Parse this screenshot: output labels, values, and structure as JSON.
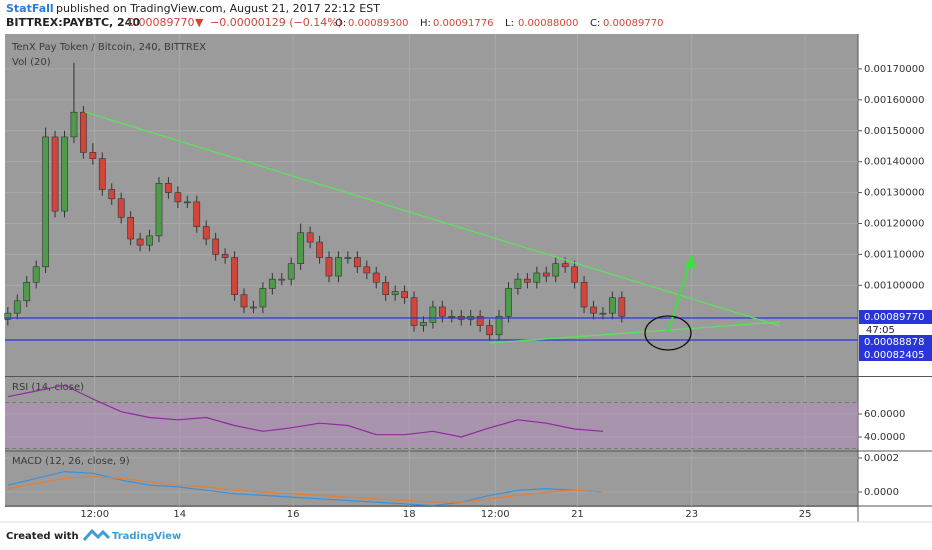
{
  "header": {
    "author": "StatFall",
    "published": "published on TradingView.com, August 21, 2017 22:12 EST",
    "symbol": "BITTREX:PAYBTC, 240",
    "last": "0.00089770",
    "arrow": "▼",
    "change": "−0.00000129 (−0.14%)",
    "ohlc": [
      [
        "O:",
        "0.00089300"
      ],
      [
        "H:",
        "0.00091776"
      ],
      [
        "L:",
        "0.00088000"
      ],
      [
        "C:",
        "0.00089770"
      ]
    ]
  },
  "price_tags": [
    "0.00089770",
    "47:05",
    "0.00088878",
    "0.00082405"
  ],
  "footer": {
    "created": "Created with",
    "brand": "TradingView"
  },
  "chart_data": [
    {
      "type": "candlestick",
      "title": "TenX Pay Token / Bitcoin, 240, BITTREX",
      "subtitle": "Vol (20)",
      "up_color": "#4f9a4b",
      "down_color": "#d2453c",
      "grid": true,
      "x": [
        0,
        1,
        2,
        3,
        4,
        5,
        6,
        7,
        8,
        9,
        10,
        11,
        12,
        13,
        14,
        15,
        16,
        17,
        18,
        19,
        20,
        21,
        22,
        23,
        24,
        25,
        26,
        27,
        28,
        29,
        30,
        31,
        32,
        33,
        34,
        35,
        36,
        37,
        38,
        39,
        40,
        41,
        42,
        43,
        44,
        45,
        46,
        47,
        48,
        49,
        50,
        51,
        52,
        53,
        54,
        55,
        56,
        57,
        58,
        59,
        60,
        61,
        62,
        63,
        64,
        65
      ],
      "open": [
        0.00089,
        0.00091,
        0.00095,
        0.00101,
        0.00106,
        0.00148,
        0.00124,
        0.00148,
        0.00156,
        0.00143,
        0.00141,
        0.00131,
        0.00128,
        0.00122,
        0.00115,
        0.00113,
        0.00116,
        0.00133,
        0.0013,
        0.00127,
        0.00127,
        0.00119,
        0.00115,
        0.0011,
        0.00109,
        0.00097,
        0.00093,
        0.00093,
        0.00099,
        0.00102,
        0.00102,
        0.00107,
        0.00117,
        0.00114,
        0.00109,
        0.00103,
        0.00109,
        0.00109,
        0.00106,
        0.00104,
        0.00101,
        0.00097,
        0.00098,
        0.00096,
        0.00087,
        0.00088,
        0.00093,
        0.0009,
        0.0009,
        0.00089,
        0.0009,
        0.00087,
        0.00084,
        0.0009,
        0.00099,
        0.00102,
        0.00101,
        0.00104,
        0.00103,
        0.00107,
        0.00106,
        0.00101,
        0.00093,
        0.00091,
        0.00091,
        0.00096
      ],
      "close": [
        0.00091,
        0.00095,
        0.00101,
        0.00106,
        0.00148,
        0.00124,
        0.00148,
        0.00156,
        0.00143,
        0.00141,
        0.00131,
        0.00128,
        0.00122,
        0.00115,
        0.00113,
        0.00116,
        0.00133,
        0.0013,
        0.00127,
        0.00127,
        0.00119,
        0.00115,
        0.0011,
        0.00109,
        0.00097,
        0.00093,
        0.00093,
        0.00099,
        0.00102,
        0.00102,
        0.00107,
        0.00117,
        0.00114,
        0.00109,
        0.00103,
        0.00109,
        0.00109,
        0.00106,
        0.00104,
        0.00101,
        0.00097,
        0.00098,
        0.00096,
        0.00087,
        0.00088,
        0.00093,
        0.0009,
        0.0009,
        0.00089,
        0.0009,
        0.00087,
        0.00084,
        0.0009,
        0.00099,
        0.00102,
        0.00101,
        0.00104,
        0.00103,
        0.00107,
        0.00106,
        0.00101,
        0.00093,
        0.00091,
        0.00091,
        0.00096,
        0.0009
      ],
      "high": [
        0.00093,
        0.00097,
        0.00103,
        0.00108,
        0.00151,
        0.0015,
        0.0015,
        0.00172,
        0.00158,
        0.00146,
        0.00143,
        0.00133,
        0.0013,
        0.00124,
        0.00117,
        0.00118,
        0.00135,
        0.00135,
        0.00132,
        0.00129,
        0.00129,
        0.00121,
        0.00117,
        0.00112,
        0.00111,
        0.00099,
        0.00095,
        0.00101,
        0.00104,
        0.00104,
        0.00109,
        0.0012,
        0.00119,
        0.00116,
        0.00111,
        0.00111,
        0.00111,
        0.00111,
        0.00108,
        0.00106,
        0.00103,
        0.001,
        0.001,
        0.00098,
        0.0009,
        0.00095,
        0.00095,
        0.00092,
        0.00092,
        0.00092,
        0.00092,
        0.00089,
        0.00092,
        0.00101,
        0.00104,
        0.00104,
        0.00106,
        0.00106,
        0.00109,
        0.00109,
        0.00108,
        0.00103,
        0.00095,
        0.00093,
        0.00098,
        0.00098
      ],
      "low": [
        0.00087,
        0.00089,
        0.00093,
        0.00099,
        0.00104,
        0.00122,
        0.00122,
        0.00146,
        0.00141,
        0.00139,
        0.00129,
        0.00126,
        0.0012,
        0.00113,
        0.00111,
        0.00111,
        0.00114,
        0.00128,
        0.00125,
        0.00125,
        0.00117,
        0.00113,
        0.00108,
        0.00107,
        0.00095,
        0.00091,
        0.00091,
        0.00091,
        0.00097,
        0.001,
        0.001,
        0.00105,
        0.00112,
        0.00107,
        0.00101,
        0.00101,
        0.00107,
        0.00104,
        0.00102,
        0.00099,
        0.00095,
        0.00095,
        0.00094,
        0.00085,
        0.00085,
        0.00086,
        0.00088,
        0.00088,
        0.00087,
        0.00087,
        0.00085,
        0.00082,
        0.00082,
        0.00088,
        0.00097,
        0.00099,
        0.00099,
        0.00101,
        0.00101,
        0.00104,
        0.00099,
        0.00091,
        0.00089,
        0.00089,
        0.00089,
        0.00088
      ],
      "xlim": [
        -0.3,
        90
      ],
      "xticks": [
        {
          "value": 9.2,
          "label": "12:00"
        },
        {
          "value": 18.2,
          "label": "14"
        },
        {
          "value": 30.2,
          "label": "16"
        },
        {
          "value": 42.5,
          "label": "18"
        },
        {
          "value": 51.6,
          "label": "12:00"
        },
        {
          "value": 60.3,
          "label": "21"
        },
        {
          "value": 72.4,
          "label": "23"
        },
        {
          "value": 84.4,
          "label": "25"
        }
      ],
      "ylim": [
        0.00071,
        0.0018
      ],
      "yticks": [
        {
          "value": 0.001,
          "label": "0.00100000"
        },
        {
          "value": 0.0011,
          "label": "0.00110000"
        },
        {
          "value": 0.0012,
          "label": "0.00120000"
        },
        {
          "value": 0.0013,
          "label": "0.00130000"
        },
        {
          "value": 0.0014,
          "label": "0.00140000"
        },
        {
          "value": 0.0015,
          "label": "0.00150000"
        },
        {
          "value": 0.0016,
          "label": "0.00160000"
        },
        {
          "value": 0.0017,
          "label": "0.00170000"
        }
      ]
    },
    {
      "type": "line",
      "title": "RSI (14, close)",
      "band": [
        30,
        70
      ],
      "band_color": "#b88fc4",
      "x": [
        0,
        3,
        6,
        9,
        12,
        15,
        18,
        21,
        24,
        27,
        30,
        33,
        36,
        39,
        42,
        45,
        48,
        51,
        54,
        57,
        60,
        63
      ],
      "series": [
        {
          "color": "#8e2a9e",
          "values": [
            75,
            80,
            85,
            73,
            62,
            57,
            55,
            57,
            50,
            45,
            48,
            52,
            50,
            42,
            42,
            45,
            40,
            48,
            55,
            52,
            47,
            45
          ]
        }
      ],
      "ylim": [
        28.7,
        91.3
      ],
      "yticks": [
        {
          "value": 40,
          "label": "40.0000"
        },
        {
          "value": 60,
          "label": "60.0000"
        }
      ]
    },
    {
      "type": "line",
      "title": "MACD (12, 26, close, 9)",
      "x": [
        0,
        3,
        6,
        9,
        12,
        15,
        18,
        21,
        24,
        27,
        30,
        33,
        36,
        39,
        42,
        45,
        48,
        51,
        54,
        57,
        60,
        63
      ],
      "series": [
        {
          "color": "#3c8fd8",
          "values": [
            4e-05,
            8e-05,
            0.00012,
            0.00011,
            7e-05,
            4e-05,
            3e-05,
            1e-05,
            -1e-05,
            -2e-05,
            -3e-05,
            -4e-05,
            -5e-05,
            -6e-05,
            -7e-05,
            -8e-05,
            -6e-05,
            -2e-05,
            1e-05,
            2e-05,
            1e-05,
            0
          ]
        },
        {
          "color": "#e0803a",
          "values": [
            2e-05,
            5e-05,
            8e-05,
            9e-05,
            8e-05,
            6e-05,
            4e-05,
            3e-05,
            1e-05,
            0,
            -1e-05,
            -2e-05,
            -3e-05,
            -4e-05,
            -5e-05,
            -6e-05,
            -6e-05,
            -4e-05,
            -2e-05,
            0,
            1e-05,
            0
          ]
        }
      ],
      "ylim": [
        -7.65e-05,
        0.000235
      ],
      "yticks": [
        {
          "value": 0.0002,
          "label": "0.0002"
        },
        {
          "value": 0,
          "label": "0.0000"
        }
      ]
    }
  ]
}
